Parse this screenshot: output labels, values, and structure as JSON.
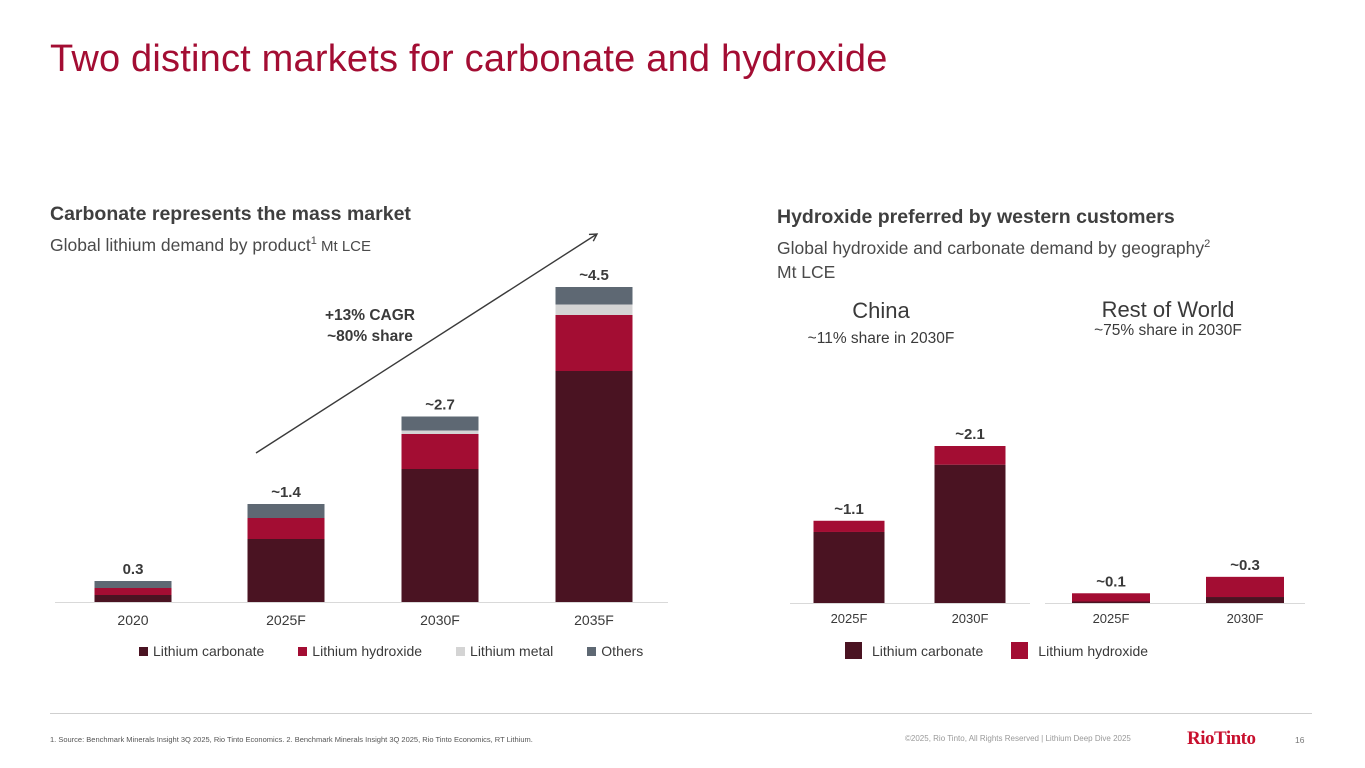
{
  "title": "Two distinct markets for carbonate and hydroxide",
  "colors": {
    "lithium_carbonate": "#4a1322",
    "lithium_hydroxide": "#a30d33",
    "lithium_metal": "#d4d4d4",
    "others": "#5e6873",
    "title": "#a30d33"
  },
  "left": {
    "heading": "Carbonate represents the mass market",
    "subtitle": "Global lithium demand by product",
    "subtitle_sup": "1",
    "subtitle_unit": " Mt LCE",
    "annotation_line1": "+13% CAGR",
    "annotation_line2": "~80% share"
  },
  "right": {
    "heading": "Hydroxide preferred by western customers",
    "subtitle": "Global hydroxide and carbonate demand by geography",
    "subtitle_sup": "2",
    "subtitle_unit": "Mt LCE",
    "china_title": "China",
    "china_sub": "~11% share in 2030F",
    "row_title": "Rest of World",
    "row_sub": "~75% share in 2030F",
    "legend": [
      "Lithium carbonate",
      "Lithium hydroxide"
    ]
  },
  "chart_data": [
    {
      "type": "bar",
      "stacked": true,
      "title": "Global lithium demand by product",
      "ylabel": "Mt LCE",
      "categories": [
        "2020",
        "2025F",
        "2030F",
        "2035F"
      ],
      "series": [
        {
          "name": "Lithium carbonate",
          "values": [
            0.1,
            0.9,
            1.9,
            3.3
          ]
        },
        {
          "name": "Lithium hydroxide",
          "values": [
            0.1,
            0.3,
            0.5,
            0.8
          ]
        },
        {
          "name": "Lithium metal",
          "values": [
            0.0,
            0.0,
            0.05,
            0.15
          ]
        },
        {
          "name": "Others",
          "values": [
            0.1,
            0.2,
            0.2,
            0.25
          ]
        }
      ],
      "data_labels": [
        "0.3",
        "~1.4",
        "~2.7",
        "~4.5"
      ],
      "ylim": [
        0,
        4.5
      ]
    },
    {
      "type": "bar",
      "stacked": true,
      "title": "China",
      "ylabel": "Mt LCE",
      "categories": [
        "2025F",
        "2030F"
      ],
      "series": [
        {
          "name": "Lithium carbonate",
          "values": [
            0.95,
            1.85
          ]
        },
        {
          "name": "Lithium hydroxide",
          "values": [
            0.15,
            0.25
          ]
        }
      ],
      "data_labels": [
        "~1.1",
        "~2.1"
      ],
      "ylim": [
        0,
        2.1
      ]
    },
    {
      "type": "bar",
      "stacked": true,
      "title": "Rest of World",
      "ylabel": "Mt LCE",
      "categories": [
        "2025F",
        "2030F"
      ],
      "series": [
        {
          "name": "Lithium carbonate",
          "values": [
            0.02,
            0.08
          ]
        },
        {
          "name": "Lithium hydroxide",
          "values": [
            0.11,
            0.27
          ]
        }
      ],
      "data_labels": [
        "~0.1",
        "~0.3"
      ],
      "ylim": [
        0,
        2.1
      ]
    }
  ],
  "footer": {
    "footnote": "1. Source: Benchmark Minerals Insight 3Q 2025, Rio Tinto Economics. 2. Benchmark Minerals Insight 3Q 2025, Rio Tinto Economics, RT Lithium.",
    "copyright": "©2025, Rio Tinto, All Rights Reserved   |   Lithium Deep Dive 2025",
    "logo": "RioTinto",
    "page_number": "16"
  }
}
